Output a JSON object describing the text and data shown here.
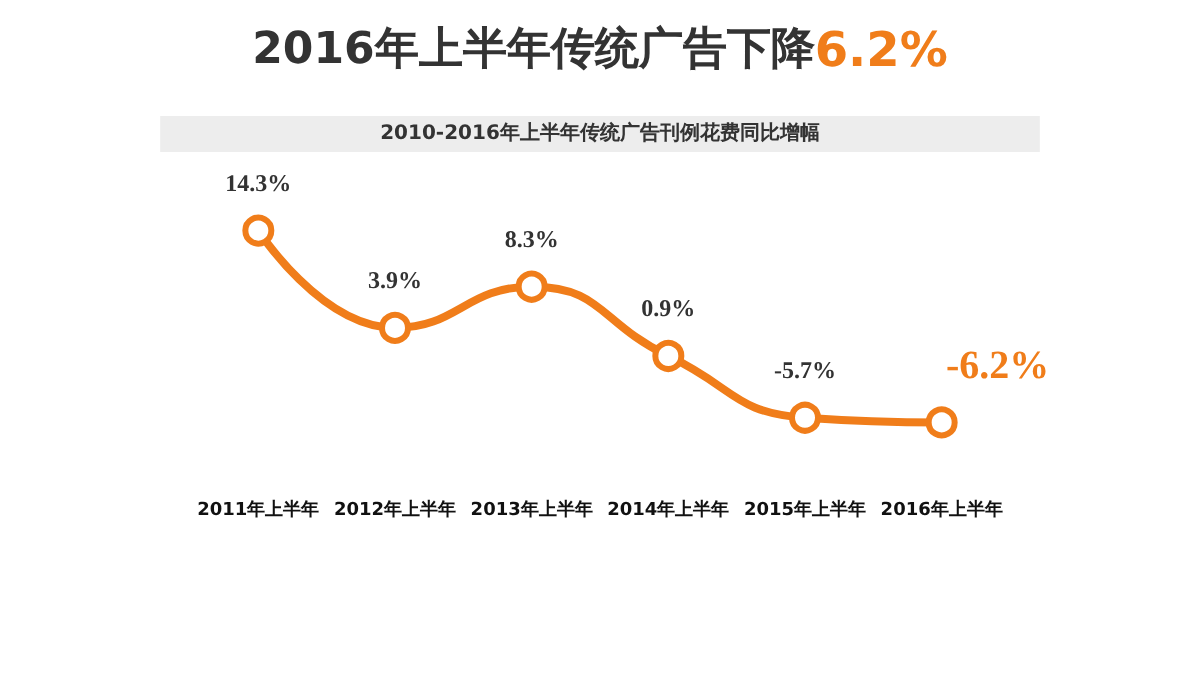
{
  "chart_data": {
    "type": "line",
    "title": "2016年上半年传统广告下降6.2%",
    "subtitle": "2010-2016年上半年传统广告刊例花费同比增幅",
    "categories": [
      "2011年上半年",
      "2012年上半年",
      "2013年上半年",
      "2014年上半年",
      "2015年上半年",
      "2016年上半年"
    ],
    "series": [
      {
        "color": "#f07d1a",
        "values": [
          14.3,
          3.9,
          8.3,
          0.9,
          -5.7,
          -6.2
        ],
        "value_labels": [
          "14.3%",
          "3.9%",
          "8.3%",
          "0.9%",
          "-5.7%",
          "-6.2%"
        ]
      }
    ],
    "marker": "circle"
  }
}
